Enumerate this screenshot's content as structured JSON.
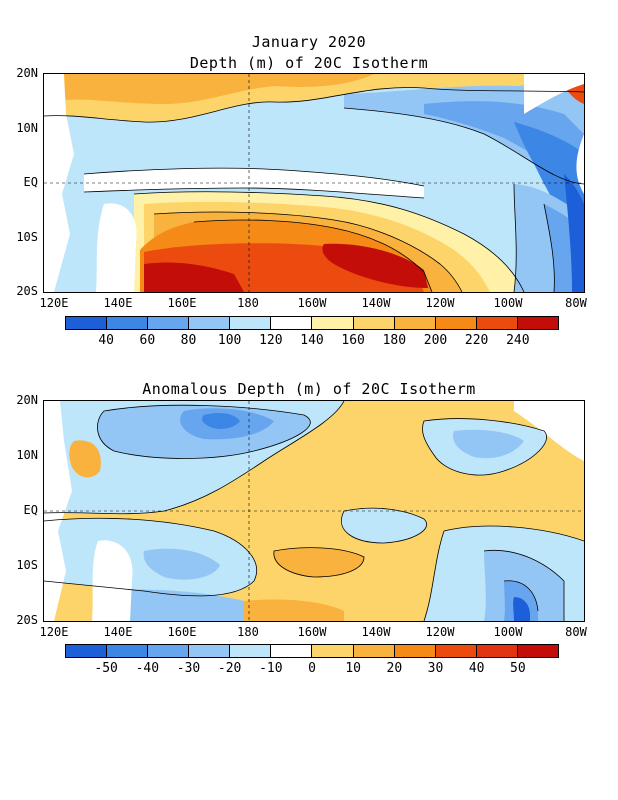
{
  "top": {
    "title_line1": "January 2020",
    "title_line2": "Depth (m) of 20C Isotherm",
    "colorbar": {
      "labels": [
        "40",
        "60",
        "80",
        "100",
        "120",
        "140",
        "160",
        "180",
        "200",
        "220",
        "240"
      ],
      "colors": [
        "#1c5fd8",
        "#3c86e6",
        "#67a6ee",
        "#93c6f4",
        "#bde6fb",
        "#ffffff",
        "#fff2a8",
        "#fdd46a",
        "#f9b23d",
        "#f58a17",
        "#ec4b10",
        "#c20d08"
      ]
    }
  },
  "bottom": {
    "title": "Anomalous Depth (m) of 20C Isotherm",
    "colorbar": {
      "labels": [
        "-50",
        "-40",
        "-30",
        "-20",
        "-10",
        "0",
        "10",
        "20",
        "30",
        "40",
        "50"
      ],
      "colors": [
        "#1c5fd8",
        "#3c86e6",
        "#67a6ee",
        "#93c6f4",
        "#bde6fb",
        "#ffffff",
        "#fdd46a",
        "#f9b23d",
        "#f58a17",
        "#ec4b10",
        "#e03510",
        "#c20d08"
      ]
    }
  },
  "axes": {
    "lat_labels": [
      "20N",
      "10N",
      "EQ",
      "10S",
      "20S"
    ],
    "lon_labels": [
      "120E",
      "140E",
      "160E",
      "180",
      "160W",
      "140W",
      "120W",
      "100W",
      "80W"
    ]
  }
}
